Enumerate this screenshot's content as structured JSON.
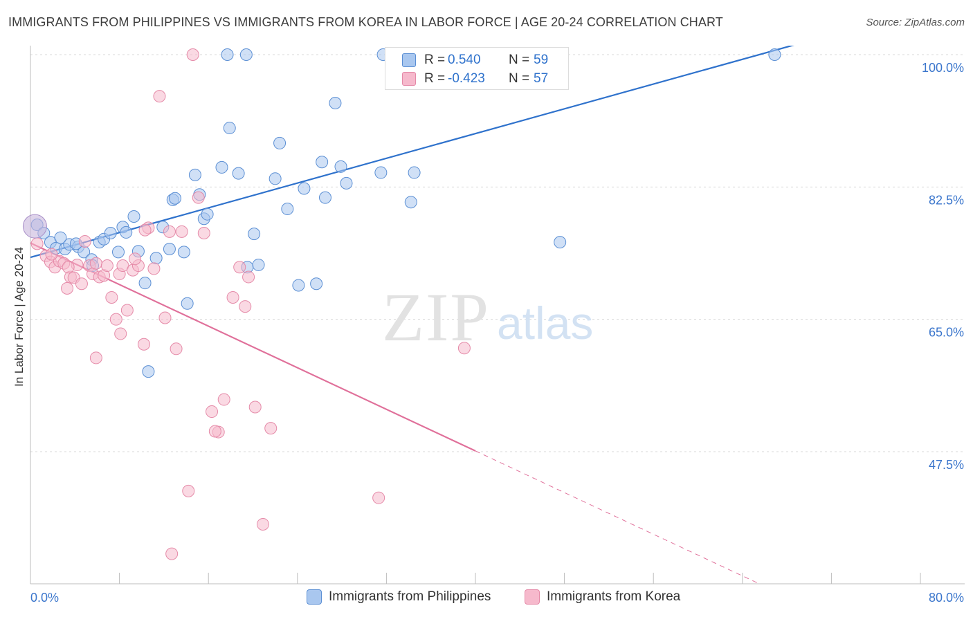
{
  "title": "IMMIGRANTS FROM PHILIPPINES VS IMMIGRANTS FROM KOREA IN LABOR FORCE | AGE 20-24 CORRELATION CHART",
  "source": "Source: ZipAtlas.com",
  "watermark": {
    "zip": "ZIP",
    "atlas": "atlas"
  },
  "colors": {
    "blue_fill": "#a9c7ef",
    "blue_stroke": "#5b8fd4",
    "blue_line": "#2f72cc",
    "pink_fill": "#f6b9cc",
    "pink_stroke": "#e58aa8",
    "pink_line": "#e0709a",
    "axis_label_blue": "#3b76cc",
    "grid": "#d8d8d8"
  },
  "stats": [
    {
      "r_label": "R =",
      "r_value": "0.540",
      "n_label": "N =",
      "n_value": "59"
    },
    {
      "r_label": "R =",
      "r_value": "-0.423",
      "n_label": "N =",
      "n_value": "57"
    }
  ],
  "chart_data": {
    "type": "scatter",
    "title": "IMMIGRANTS FROM PHILIPPINES VS IMMIGRANTS FROM KOREA IN LABOR FORCE | AGE 20-24 CORRELATION CHART",
    "xlabel": "",
    "ylabel": "In Labor Force | Age 20-24",
    "xlim": [
      0,
      80
    ],
    "ylim": [
      33,
      102
    ],
    "x_tick_labels": [
      "0.0%",
      "80.0%"
    ],
    "y_ticks": [
      {
        "value": 100,
        "label": "100.0%"
      },
      {
        "value": 82.5,
        "label": "82.5%"
      },
      {
        "value": 65,
        "label": "65.0%"
      },
      {
        "value": 47.5,
        "label": "47.5%"
      }
    ],
    "grid": "horizontal dashed",
    "legend_position": "bottom-center",
    "series": [
      {
        "name": "Immigrants from Philippines",
        "color": "#a9c7ef",
        "points": [
          [
            0.6,
            77.5
          ],
          [
            1.2,
            76.4
          ],
          [
            1.8,
            75.2
          ],
          [
            2.3,
            74.4
          ],
          [
            3.1,
            74.3
          ],
          [
            3.5,
            74.9
          ],
          [
            4.3,
            74.6
          ],
          [
            4.8,
            73.9
          ],
          [
            5.5,
            72.9
          ],
          [
            5.6,
            72.1
          ],
          [
            6.2,
            75.2
          ],
          [
            6.6,
            75.6
          ],
          [
            7.2,
            76.4
          ],
          [
            7.9,
            73.9
          ],
          [
            8.3,
            77.2
          ],
          [
            8.6,
            76.5
          ],
          [
            9.3,
            78.6
          ],
          [
            9.7,
            74.0
          ],
          [
            10.3,
            69.8
          ],
          [
            10.6,
            58.1
          ],
          [
            11.3,
            73.1
          ],
          [
            11.9,
            77.2
          ],
          [
            12.5,
            74.3
          ],
          [
            12.8,
            80.8
          ],
          [
            13.0,
            81.0
          ],
          [
            13.8,
            73.9
          ],
          [
            14.1,
            67.1
          ],
          [
            14.8,
            84.1
          ],
          [
            15.2,
            81.5
          ],
          [
            15.6,
            78.3
          ],
          [
            15.9,
            78.9
          ],
          [
            17.2,
            85.1
          ],
          [
            17.9,
            90.3
          ],
          [
            18.7,
            84.3
          ],
          [
            19.5,
            71.9
          ],
          [
            20.1,
            76.3
          ],
          [
            20.5,
            72.2
          ],
          [
            22.0,
            83.6
          ],
          [
            22.4,
            88.3
          ],
          [
            23.1,
            79.6
          ],
          [
            24.1,
            69.5
          ],
          [
            24.6,
            82.3
          ],
          [
            25.7,
            69.7
          ],
          [
            26.2,
            85.8
          ],
          [
            26.5,
            81.1
          ],
          [
            27.4,
            93.6
          ],
          [
            27.9,
            85.2
          ],
          [
            28.4,
            83.0
          ],
          [
            31.5,
            84.4
          ],
          [
            34.2,
            80.5
          ],
          [
            34.5,
            84.4
          ],
          [
            47.6,
            75.2
          ],
          [
            17.7,
            100
          ],
          [
            19.4,
            100
          ],
          [
            31.7,
            100
          ],
          [
            33.4,
            100
          ],
          [
            66.9,
            100
          ],
          [
            4.1,
            75.0
          ],
          [
            2.7,
            75.8
          ]
        ]
      },
      {
        "name": "Immigrants from Korea",
        "color": "#f6b9cc",
        "points": [
          [
            0.6,
            75.0
          ],
          [
            1.4,
            73.4
          ],
          [
            1.8,
            72.6
          ],
          [
            2.2,
            71.9
          ],
          [
            2.6,
            72.7
          ],
          [
            3.0,
            72.4
          ],
          [
            3.3,
            69.1
          ],
          [
            3.6,
            70.6
          ],
          [
            3.9,
            70.5
          ],
          [
            4.2,
            72.2
          ],
          [
            4.6,
            69.7
          ],
          [
            4.9,
            75.3
          ],
          [
            5.3,
            72.1
          ],
          [
            5.6,
            71.0
          ],
          [
            5.9,
            72.4
          ],
          [
            6.2,
            70.6
          ],
          [
            6.6,
            70.8
          ],
          [
            6.9,
            72.1
          ],
          [
            7.3,
            67.9
          ],
          [
            7.7,
            65.0
          ],
          [
            8.0,
            71.0
          ],
          [
            8.3,
            72.1
          ],
          [
            8.7,
            66.2
          ],
          [
            9.2,
            71.5
          ],
          [
            9.7,
            72.1
          ],
          [
            10.2,
            61.7
          ],
          [
            10.6,
            77.1
          ],
          [
            11.1,
            71.7
          ],
          [
            11.6,
            94.5
          ],
          [
            12.1,
            65.2
          ],
          [
            12.5,
            76.6
          ],
          [
            13.1,
            61.1
          ],
          [
            13.6,
            76.6
          ],
          [
            14.2,
            42.3
          ],
          [
            14.6,
            100
          ],
          [
            15.1,
            81.1
          ],
          [
            15.6,
            76.4
          ],
          [
            16.3,
            52.8
          ],
          [
            16.9,
            50.1
          ],
          [
            17.4,
            54.4
          ],
          [
            18.2,
            67.9
          ],
          [
            18.8,
            71.9
          ],
          [
            19.3,
            66.7
          ],
          [
            19.6,
            70.6
          ],
          [
            20.2,
            53.4
          ],
          [
            20.9,
            37.9
          ],
          [
            21.6,
            50.6
          ],
          [
            31.3,
            41.4
          ],
          [
            39.0,
            61.2
          ],
          [
            12.7,
            34.0
          ],
          [
            16.6,
            50.2
          ],
          [
            5.9,
            59.9
          ],
          [
            8.1,
            63.1
          ],
          [
            9.4,
            73.0
          ],
          [
            10.3,
            76.8
          ],
          [
            1.9,
            73.6
          ],
          [
            3.4,
            71.9
          ]
        ]
      }
    ],
    "trend_lines": [
      {
        "series": "Immigrants from Philippines",
        "from": [
          0,
          73.2
        ],
        "to": [
          70.4,
          102
        ],
        "style": "solid"
      },
      {
        "series": "Immigrants from Korea",
        "from": [
          0,
          75.1
        ],
        "to": [
          40,
          47.6
        ],
        "style": "solid"
      },
      {
        "series": "Immigrants from Korea",
        "from": [
          40,
          47.6
        ],
        "to": [
          66,
          29.7
        ],
        "style": "dashed"
      }
    ]
  }
}
